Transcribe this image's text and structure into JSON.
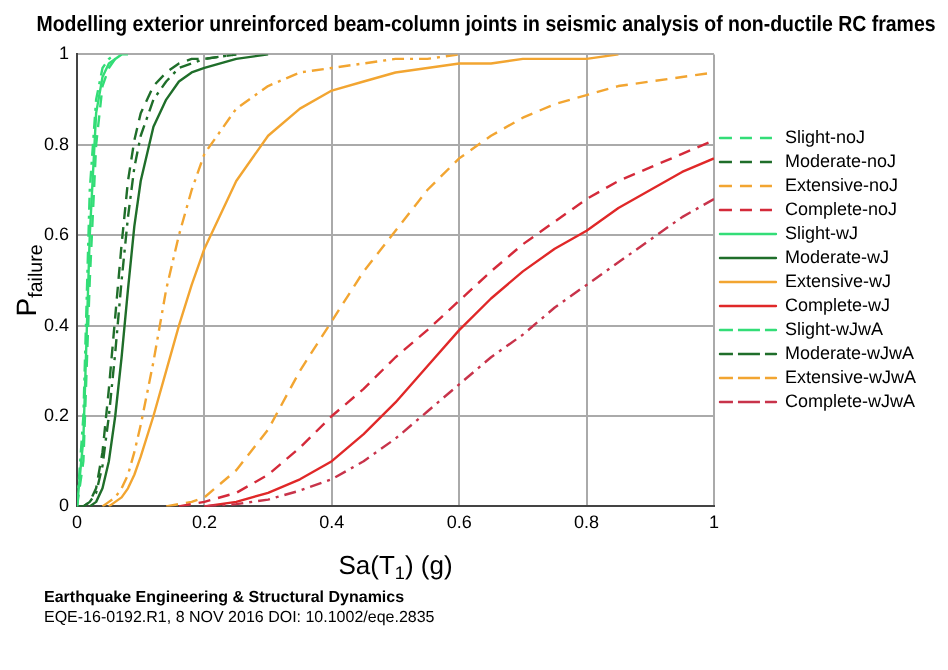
{
  "chart_data": {
    "type": "line",
    "title": "Modelling exterior unreinforced beam-column joints in seismic analysis of non-ductile RC frames",
    "xlabel": "Sa(T$_{1}$) (g)",
    "ylabel": "P$_{failure}$",
    "series": [
      {
        "name": "Slight-noJ",
        "color": "#33dd77",
        "line_style": "dashed",
        "x": [
          0,
          0.01,
          0.02,
          0.03,
          0.04,
          0.05,
          0.06,
          0.07
        ],
        "values": [
          0,
          0.1,
          0.5,
          0.8,
          0.93,
          0.97,
          0.99,
          1
        ]
      },
      {
        "name": "Moderate-noJ",
        "color": "#1f6e2a",
        "line_style": "dashed",
        "x": [
          0,
          0.01,
          0.02,
          0.03,
          0.04,
          0.05,
          0.06,
          0.07,
          0.08,
          0.09,
          0.1,
          0.12,
          0.14,
          0.16,
          0.18,
          0.2,
          0.25
        ],
        "values": [
          0,
          0,
          0.01,
          0.04,
          0.12,
          0.26,
          0.42,
          0.58,
          0.72,
          0.81,
          0.87,
          0.93,
          0.96,
          0.98,
          0.99,
          0.99,
          1
        ]
      },
      {
        "name": "Extensive-noJ",
        "color": "#f2a531",
        "line_style": "dashed",
        "x": [
          0.14,
          0.16,
          0.18,
          0.2,
          0.25,
          0.3,
          0.35,
          0.4,
          0.45,
          0.5,
          0.55,
          0.6,
          0.65,
          0.7,
          0.75,
          0.8,
          0.85,
          0.9,
          0.95,
          1
        ],
        "values": [
          0,
          0.005,
          0.01,
          0.02,
          0.08,
          0.17,
          0.3,
          0.41,
          0.52,
          0.61,
          0.7,
          0.77,
          0.82,
          0.86,
          0.89,
          0.91,
          0.93,
          0.94,
          0.95,
          0.96
        ]
      },
      {
        "name": "Complete-noJ",
        "color": "#d42a3a",
        "line_style": "dashed",
        "x": [
          0.16,
          0.18,
          0.2,
          0.25,
          0.3,
          0.35,
          0.4,
          0.45,
          0.5,
          0.55,
          0.6,
          0.65,
          0.7,
          0.75,
          0.8,
          0.85,
          0.9,
          0.95,
          1
        ],
        "values": [
          0,
          0.005,
          0.01,
          0.03,
          0.07,
          0.13,
          0.2,
          0.26,
          0.33,
          0.39,
          0.455,
          0.52,
          0.58,
          0.63,
          0.68,
          0.72,
          0.75,
          0.78,
          0.81
        ]
      },
      {
        "name": "Slight-wJ",
        "color": "#33dd77",
        "line_style": "solid",
        "x": [
          0,
          0.01,
          0.02,
          0.03,
          0.04,
          0.05,
          0.06,
          0.07,
          0.08
        ],
        "values": [
          0,
          0.15,
          0.6,
          0.87,
          0.95,
          0.98,
          0.99,
          1,
          1
        ]
      },
      {
        "name": "Moderate-wJ",
        "color": "#1f6e2a",
        "line_style": "solid",
        "x": [
          0.02,
          0.03,
          0.04,
          0.05,
          0.06,
          0.07,
          0.08,
          0.09,
          0.1,
          0.12,
          0.14,
          0.16,
          0.18,
          0.2,
          0.25,
          0.3
        ],
        "values": [
          0,
          0.01,
          0.04,
          0.1,
          0.2,
          0.33,
          0.48,
          0.62,
          0.72,
          0.84,
          0.9,
          0.94,
          0.96,
          0.97,
          0.99,
          1
        ]
      },
      {
        "name": "Extensive-wJ",
        "color": "#f2a531",
        "line_style": "solid",
        "x": [
          0.05,
          0.06,
          0.07,
          0.08,
          0.09,
          0.1,
          0.12,
          0.14,
          0.16,
          0.18,
          0.2,
          0.25,
          0.3,
          0.35,
          0.4,
          0.45,
          0.5,
          0.55,
          0.6,
          0.65,
          0.7,
          0.75,
          0.8,
          0.85
        ],
        "values": [
          0,
          0.01,
          0.02,
          0.04,
          0.07,
          0.11,
          0.2,
          0.3,
          0.4,
          0.49,
          0.57,
          0.72,
          0.82,
          0.88,
          0.92,
          0.94,
          0.96,
          0.97,
          0.98,
          0.98,
          0.99,
          0.99,
          0.99,
          1
        ]
      },
      {
        "name": "Complete-wJ",
        "color": "#e02828",
        "line_style": "solid",
        "x": [
          0.2,
          0.25,
          0.3,
          0.35,
          0.4,
          0.45,
          0.5,
          0.55,
          0.6,
          0.65,
          0.7,
          0.75,
          0.8,
          0.85,
          0.9,
          0.95,
          1
        ],
        "values": [
          0,
          0.01,
          0.03,
          0.06,
          0.1,
          0.16,
          0.23,
          0.31,
          0.39,
          0.46,
          0.52,
          0.57,
          0.61,
          0.66,
          0.7,
          0.74,
          0.77
        ]
      },
      {
        "name": "Slight-wJwA",
        "color": "#33dd77",
        "line_style": "dashdot",
        "x": [
          0,
          0.01,
          0.02,
          0.03,
          0.04,
          0.05,
          0.06
        ],
        "values": [
          0,
          0.2,
          0.7,
          0.9,
          0.97,
          0.99,
          1
        ]
      },
      {
        "name": "Moderate-wJwA",
        "color": "#1f6e2a",
        "line_style": "dashdot",
        "x": [
          0.01,
          0.02,
          0.03,
          0.04,
          0.05,
          0.06,
          0.07,
          0.08,
          0.09,
          0.1,
          0.12,
          0.14,
          0.16,
          0.18,
          0.2,
          0.25
        ],
        "values": [
          0,
          0.01,
          0.03,
          0.09,
          0.2,
          0.34,
          0.5,
          0.64,
          0.75,
          0.82,
          0.9,
          0.94,
          0.97,
          0.98,
          0.99,
          1
        ]
      },
      {
        "name": "Extensive-wJwA",
        "color": "#f2a531",
        "line_style": "dashdot",
        "x": [
          0.04,
          0.05,
          0.06,
          0.07,
          0.08,
          0.09,
          0.1,
          0.12,
          0.14,
          0.16,
          0.18,
          0.2,
          0.25,
          0.3,
          0.35,
          0.4,
          0.45,
          0.5,
          0.55,
          0.6
        ],
        "values": [
          0,
          0.01,
          0.02,
          0.04,
          0.07,
          0.12,
          0.18,
          0.32,
          0.48,
          0.6,
          0.7,
          0.78,
          0.88,
          0.93,
          0.96,
          0.97,
          0.98,
          0.99,
          0.99,
          1
        ]
      },
      {
        "name": "Complete-wJwA",
        "color": "#c8334a",
        "line_style": "dashdot",
        "x": [
          0.2,
          0.25,
          0.3,
          0.35,
          0.4,
          0.45,
          0.5,
          0.55,
          0.6,
          0.65,
          0.7,
          0.75,
          0.8,
          0.85,
          0.9,
          0.95,
          1
        ],
        "values": [
          0,
          0.005,
          0.015,
          0.035,
          0.06,
          0.1,
          0.15,
          0.21,
          0.27,
          0.33,
          0.38,
          0.44,
          0.49,
          0.54,
          0.59,
          0.64,
          0.68
        ]
      }
    ],
    "xlim": [
      0,
      1
    ],
    "xticks": [
      0,
      0.2,
      0.4,
      0.6,
      0.8,
      1
    ],
    "ylim": [
      0,
      1
    ],
    "yticks": [
      0,
      0.2,
      0.4,
      0.6,
      0.8,
      1
    ],
    "grid": true,
    "legend": "right",
    "marker": "none",
    "annotations": [
      "Earthquake Engineering & Structural Dynamics",
      "EQE-16-0192.R1, 8 NOV 2016 DOI: 10.1002/eqe.2835"
    ]
  }
}
